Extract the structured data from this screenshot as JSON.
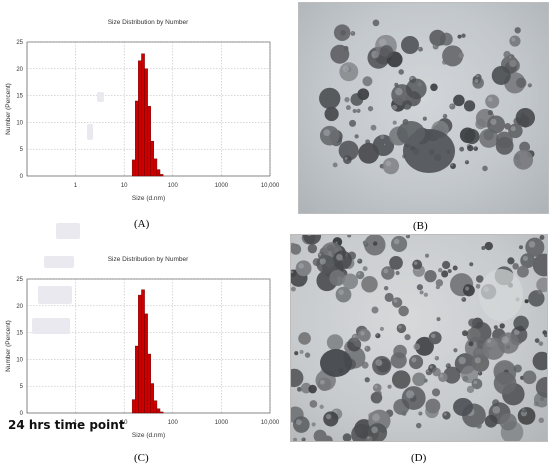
{
  "chart_data": [
    {
      "type": "bar",
      "title": "Size Distribution by Number",
      "xlabel": "Size (d.nm)",
      "ylabel": "Number (Percent)",
      "xscale": "log",
      "xlim": [
        0.1,
        10000
      ],
      "ylim": [
        0,
        25
      ],
      "xticks": [
        "1",
        "10",
        "100",
        "1000",
        "10,000"
      ],
      "yticks": [
        "0",
        "5",
        "10",
        "15",
        "20",
        "25"
      ],
      "grid": true,
      "x": [
        15.7,
        18.2,
        21.0,
        24.4,
        28.2,
        32.7,
        37.8,
        43.8,
        50.7,
        58.8
      ],
      "values": [
        3.0,
        14.0,
        21.5,
        22.8,
        20.0,
        13.0,
        6.5,
        3.2,
        1.2,
        0.3
      ],
      "panel": "(A)"
    },
    {
      "type": "bar",
      "title": "Size Distribution by Number",
      "xlabel": "Size (d.nm)",
      "ylabel": "Number (Percent)",
      "xscale": "log",
      "xlim": [
        0.1,
        10000
      ],
      "ylim": [
        0,
        25
      ],
      "xticks": [
        "1",
        "10",
        "100",
        "1000",
        "10,000"
      ],
      "yticks": [
        "0",
        "5",
        "10",
        "15",
        "20",
        "25"
      ],
      "grid": true,
      "x": [
        15.7,
        18.2,
        21.0,
        24.4,
        28.2,
        32.7,
        37.8,
        43.8,
        50.7,
        58.8
      ],
      "values": [
        2.5,
        12.5,
        22.0,
        23.0,
        18.5,
        11.0,
        5.5,
        2.3,
        0.8,
        0.2
      ],
      "panel": "(C)"
    }
  ],
  "panels": {
    "b": "(B)",
    "d": "(D)"
  },
  "annotation": "24 hrs time point",
  "colors": {
    "bar": "#cc0000",
    "bar_edge": "#5a0000",
    "grid": "#b0b0b0",
    "axis": "#333333"
  }
}
